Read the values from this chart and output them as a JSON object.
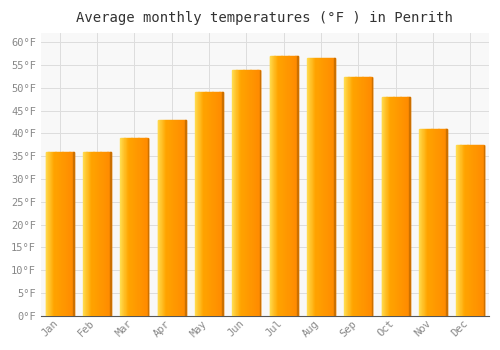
{
  "title": "Average monthly temperatures (°F ) in Penrith",
  "months": [
    "Jan",
    "Feb",
    "Mar",
    "Apr",
    "May",
    "Jun",
    "Jul",
    "Aug",
    "Sep",
    "Oct",
    "Nov",
    "Dec"
  ],
  "values": [
    36,
    36,
    39,
    43,
    49,
    54,
    57,
    56.5,
    52.5,
    48,
    41,
    37.5
  ],
  "bar_color_left": "#FFD050",
  "bar_color_mid": "#FFA500",
  "bar_color_right": "#FF8C00",
  "ylim": [
    0,
    62
  ],
  "yticks": [
    0,
    5,
    10,
    15,
    20,
    25,
    30,
    35,
    40,
    45,
    50,
    55,
    60
  ],
  "ytick_labels": [
    "0°F",
    "5°F",
    "10°F",
    "15°F",
    "20°F",
    "25°F",
    "30°F",
    "35°F",
    "40°F",
    "45°F",
    "50°F",
    "55°F",
    "60°F"
  ],
  "background_color": "#FFFFFF",
  "plot_bg_color": "#F8F8F8",
  "grid_color": "#DDDDDD",
  "title_fontsize": 10,
  "tick_fontsize": 7.5,
  "tick_color": "#888888",
  "bar_width": 0.75
}
